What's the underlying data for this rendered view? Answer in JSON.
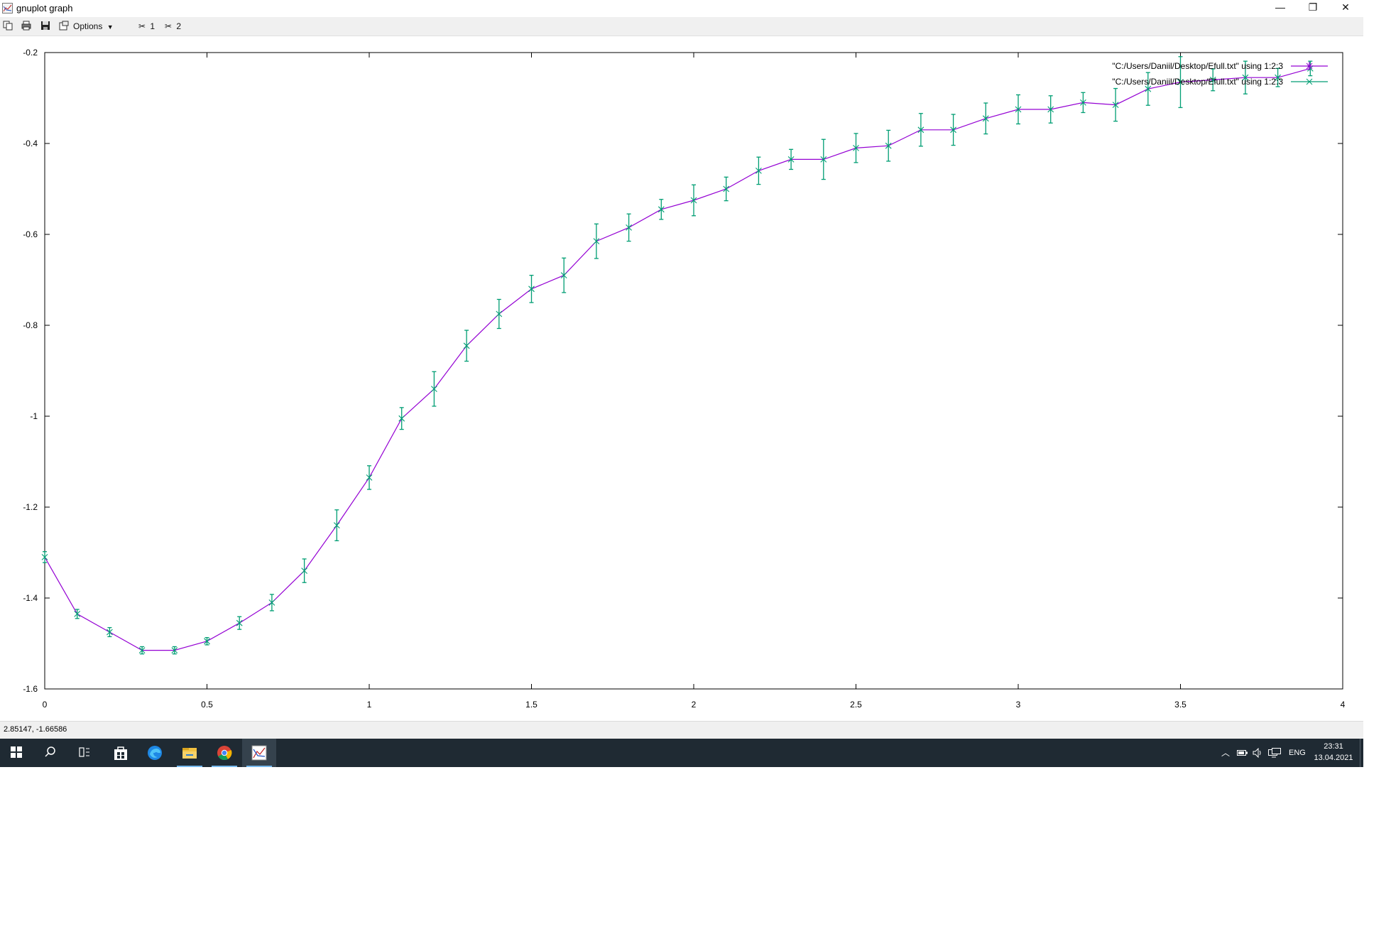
{
  "window": {
    "title": "gnuplot graph",
    "controls": {
      "minimize": "—",
      "restore": "❐",
      "close": "✕"
    }
  },
  "toolbar": {
    "options_label": "Options",
    "plot1_label": "1",
    "plot2_label": "2"
  },
  "chart_data": {
    "type": "line",
    "title": "",
    "xlim": [
      0,
      4
    ],
    "ylim": [
      -1.6,
      -0.2
    ],
    "x_ticks": [
      "0",
      "0.5",
      "1",
      "1.5",
      "2",
      "2.5",
      "3",
      "3.5",
      "4"
    ],
    "y_ticks": [
      "-0.2",
      "-0.4",
      "-0.6",
      "-0.8",
      "-1",
      "-1.2",
      "-1.4",
      "-1.6"
    ],
    "legend_position": "top-right",
    "grid": false,
    "series": [
      {
        "name": "\"C:/Users/Daniil/Desktop/Efull.txt\" using 1:2:3",
        "style": "lines",
        "color": "#9400d3",
        "x": [
          0.0,
          0.1,
          0.2,
          0.3,
          0.4,
          0.5,
          0.6,
          0.7,
          0.8,
          0.9,
          1.0,
          1.1,
          1.2,
          1.3,
          1.4,
          1.5,
          1.6,
          1.7,
          1.8,
          1.9,
          2.0,
          2.1,
          2.2,
          2.3,
          2.4,
          2.5,
          2.6,
          2.7,
          2.8,
          2.9,
          3.0,
          3.1,
          3.2,
          3.3,
          3.4,
          3.5,
          3.6,
          3.7,
          3.8,
          3.9
        ],
        "y": [
          -1.31,
          -1.435,
          -1.475,
          -1.515,
          -1.515,
          -1.495,
          -1.455,
          -1.41,
          -1.34,
          -1.24,
          -1.135,
          -1.005,
          -0.94,
          -0.845,
          -0.775,
          -0.72,
          -0.69,
          -0.615,
          -0.585,
          -0.545,
          -0.525,
          -0.5,
          -0.46,
          -0.435,
          -0.435,
          -0.41,
          -0.405,
          -0.37,
          -0.37,
          -0.345,
          -0.325,
          -0.325,
          -0.31,
          -0.315,
          -0.28,
          -0.265,
          -0.26,
          -0.255,
          -0.255,
          -0.235
        ]
      },
      {
        "name": "\"C:/Users/Daniil/Desktop/Efull.txt\" using 1:2:3",
        "style": "yerrorbars",
        "color": "#009e73",
        "x": [
          0.0,
          0.1,
          0.2,
          0.3,
          0.4,
          0.5,
          0.6,
          0.7,
          0.8,
          0.9,
          1.0,
          1.1,
          1.2,
          1.3,
          1.4,
          1.5,
          1.6,
          1.7,
          1.8,
          1.9,
          2.0,
          2.1,
          2.2,
          2.3,
          2.4,
          2.5,
          2.6,
          2.7,
          2.8,
          2.9,
          3.0,
          3.1,
          3.2,
          3.3,
          3.4,
          3.5,
          3.6,
          3.7,
          3.8,
          3.9
        ],
        "y": [
          -1.31,
          -1.435,
          -1.475,
          -1.515,
          -1.515,
          -1.495,
          -1.455,
          -1.41,
          -1.34,
          -1.24,
          -1.135,
          -1.005,
          -0.94,
          -0.845,
          -0.775,
          -0.72,
          -0.69,
          -0.615,
          -0.585,
          -0.545,
          -0.525,
          -0.5,
          -0.46,
          -0.435,
          -0.435,
          -0.41,
          -0.405,
          -0.37,
          -0.37,
          -0.345,
          -0.325,
          -0.325,
          -0.31,
          -0.315,
          -0.28,
          -0.265,
          -0.26,
          -0.255,
          -0.255,
          -0.235
        ],
        "yerr": [
          0.012,
          0.01,
          0.01,
          0.008,
          0.008,
          0.008,
          0.014,
          0.018,
          0.026,
          0.034,
          0.026,
          0.024,
          0.038,
          0.034,
          0.032,
          0.03,
          0.038,
          0.038,
          0.03,
          0.022,
          0.034,
          0.026,
          0.03,
          0.022,
          0.044,
          0.032,
          0.034,
          0.036,
          0.034,
          0.034,
          0.032,
          0.03,
          0.022,
          0.036,
          0.036,
          0.056,
          0.024,
          0.036,
          0.02,
          0.016
        ]
      }
    ]
  },
  "status": {
    "coordinates": "2.85147, -1.66586"
  },
  "taskbar": {
    "language": "ENG",
    "time": "23:31",
    "date": "13.04.2021"
  }
}
